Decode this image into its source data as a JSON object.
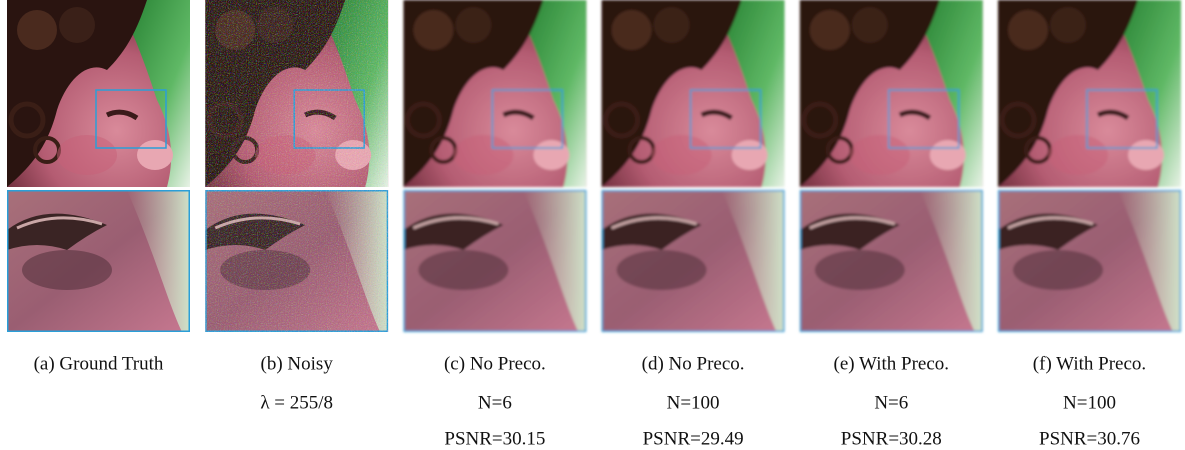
{
  "panels": [
    {
      "label": "(a) Ground Truth"
    },
    {
      "label": "(b) Noisy",
      "details": [
        "λ = 255/8"
      ],
      "noisy": true
    },
    {
      "label": "(c) No Preco.",
      "details": [
        "N=6",
        "PSNR=30.15"
      ]
    },
    {
      "label": "(d) No Preco.",
      "details": [
        "N=100",
        "PSNR=29.49"
      ]
    },
    {
      "label": "(e) With Preco.",
      "details": [
        "N=6",
        "PSNR=30.28"
      ]
    },
    {
      "label": "(f) With Preco.",
      "details": [
        "N=100",
        "PSNR=30.76"
      ]
    }
  ]
}
